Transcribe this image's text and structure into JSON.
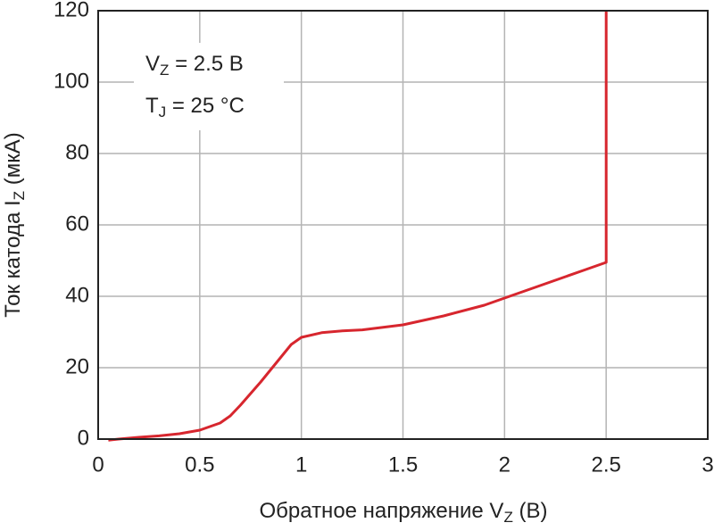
{
  "chart_data": {
    "type": "line",
    "x_label": {
      "text": "Обратное напряжение V",
      "sub": "Z",
      "suffix": " (В)"
    },
    "y_label": {
      "text": "Ток катода I",
      "sub": "Z",
      "suffix": " (мкА)"
    },
    "annotations": [
      {
        "text": "V",
        "sub": "Z",
        "suffix": " = 2.5 В"
      },
      {
        "text": "T",
        "sub": "J",
        "suffix": " = 25 °C"
      }
    ],
    "x": [
      0.05,
      0.1,
      0.2,
      0.3,
      0.4,
      0.5,
      0.6,
      0.65,
      0.7,
      0.8,
      0.9,
      0.95,
      1.0,
      1.1,
      1.2,
      1.3,
      1.5,
      1.7,
      1.9,
      2.0,
      2.2,
      2.4,
      2.5,
      2.5
    ],
    "values": [
      -0.3,
      0,
      0.5,
      0.9,
      1.5,
      2.5,
      4.5,
      6.5,
      9.5,
      16,
      23,
      26.5,
      28.5,
      29.8,
      30.3,
      30.6,
      32,
      34.5,
      37.5,
      39.5,
      43.5,
      47.5,
      49.5,
      120
    ],
    "color": "#d7262e",
    "xlim": [
      0,
      3
    ],
    "xticks": [
      0,
      0.5,
      1,
      1.5,
      2,
      2.5,
      3
    ],
    "ylim": [
      0,
      120
    ],
    "yticks": [
      0,
      20,
      40,
      60,
      80,
      100,
      120
    ],
    "grid": true
  }
}
